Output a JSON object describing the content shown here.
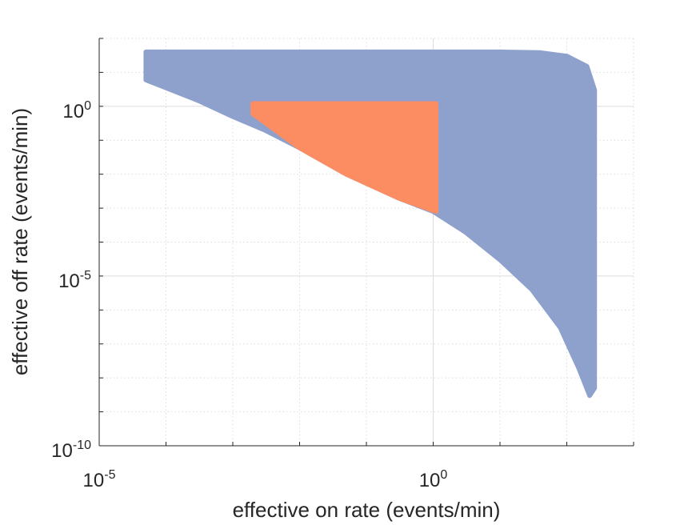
{
  "chart_data": {
    "type": "area",
    "title": "",
    "xlabel": "effective on rate (events/min)",
    "ylabel": "effective off rate (events/min)",
    "x_scale": "log",
    "y_scale": "log",
    "xlim": [
      1e-05,
      1000
    ],
    "ylim": [
      1e-10,
      100
    ],
    "x_tick_labels": [
      {
        "value": 1e-05,
        "base": "10",
        "exp": "-5"
      },
      {
        "value": 1,
        "base": "10",
        "exp": "0"
      }
    ],
    "y_tick_labels": [
      {
        "value": 1e-10,
        "base": "10",
        "exp": "-10"
      },
      {
        "value": 1e-05,
        "base": "10",
        "exp": "-5"
      },
      {
        "value": 1,
        "base": "10",
        "exp": "0"
      }
    ],
    "grid": true,
    "series": [
      {
        "color": "#8ea0cc",
        "polygon": [
          [
            5e-05,
            40
          ],
          [
            10,
            40
          ],
          [
            40,
            38
          ],
          [
            100,
            30
          ],
          [
            200,
            15
          ],
          [
            260,
            3
          ],
          [
            260,
            5e-09
          ],
          [
            220,
            3e-09
          ],
          [
            150,
            2e-08
          ],
          [
            80,
            3e-07
          ],
          [
            30,
            4e-06
          ],
          [
            10,
            3e-05
          ],
          [
            3,
            0.0002
          ],
          [
            1,
            0.0008
          ],
          [
            0.3,
            0.002
          ],
          [
            0.05,
            0.01
          ],
          [
            0.01,
            0.06
          ],
          [
            0.003,
            0.2
          ],
          [
            0.001,
            0.5
          ],
          [
            0.0003,
            1.5
          ],
          [
            5e-05,
            6
          ]
        ]
      },
      {
        "color": "#fc8d62",
        "polygon": [
          [
            0.002,
            1.2
          ],
          [
            1.1,
            1.2
          ],
          [
            1.1,
            0.0008
          ],
          [
            0.3,
            0.002
          ],
          [
            0.05,
            0.01
          ],
          [
            0.01,
            0.06
          ],
          [
            0.002,
            0.6
          ]
        ]
      }
    ]
  }
}
